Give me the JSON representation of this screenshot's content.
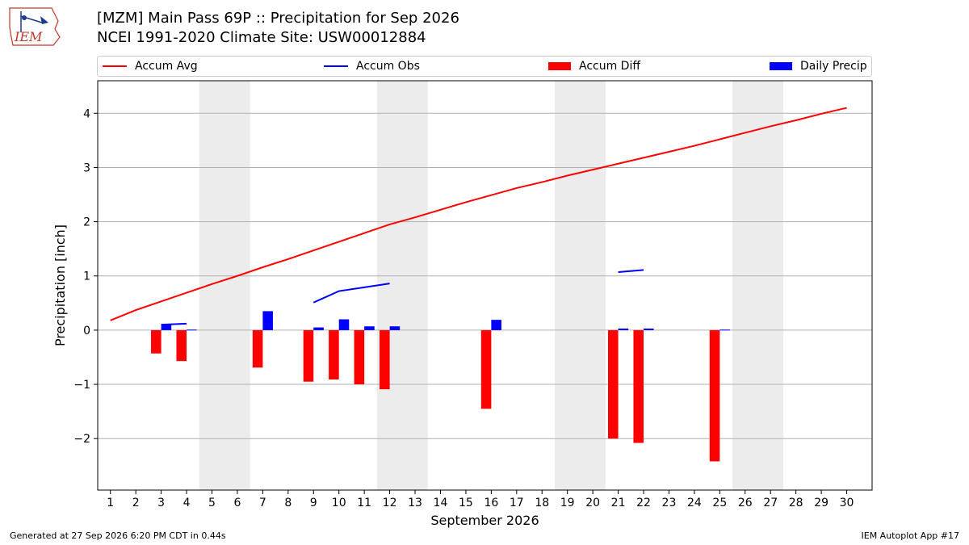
{
  "title_line1": "[MZM] Main Pass 69P :: Precipitation for Sep 2026",
  "title_line2": "NCEI 1991-2020 Climate Site: USW00012884",
  "logo_text": "IEM",
  "legend": [
    {
      "label": "Accum Avg",
      "color": "#ff0000",
      "kind": "line"
    },
    {
      "label": "Accum Obs",
      "color": "#0000ff",
      "kind": "line"
    },
    {
      "label": "Accum Diff",
      "color": "#ff0000",
      "kind": "box"
    },
    {
      "label": "Daily Precip",
      "color": "#0000ff",
      "kind": "box"
    }
  ],
  "footer_left": "Generated at 27 Sep 2026 6:20 PM CDT in 0.44s",
  "footer_right": "IEM Autoplot App #17",
  "chart_data": {
    "type": "bar",
    "xlabel": "September 2026",
    "ylabel": "Precipitation [inch]",
    "xlim": [
      0.5,
      31
    ],
    "ylim": [
      -2.95,
      4.6
    ],
    "x_ticks": [
      1,
      2,
      3,
      4,
      5,
      6,
      7,
      8,
      9,
      10,
      11,
      12,
      13,
      14,
      15,
      16,
      17,
      18,
      19,
      20,
      21,
      22,
      23,
      24,
      25,
      26,
      27,
      28,
      29,
      30
    ],
    "y_ticks": [
      -2,
      -1,
      0,
      1,
      2,
      3,
      4
    ],
    "y_tick_labels": [
      "−2",
      "−1",
      "0",
      "1",
      "2",
      "3",
      "4"
    ],
    "grid": "y",
    "weekend_shading": [
      [
        4.5,
        6.5
      ],
      [
        11.5,
        13.5
      ],
      [
        18.5,
        20.5
      ],
      [
        25.5,
        27.5
      ]
    ],
    "accum_avg": {
      "x": [
        1,
        2,
        3,
        4,
        5,
        6,
        7,
        8,
        9,
        10,
        11,
        12,
        13,
        14,
        15,
        16,
        17,
        18,
        19,
        20,
        21,
        22,
        23,
        24,
        25,
        26,
        27,
        28,
        29,
        30
      ],
      "y": [
        0.18,
        0.37,
        0.53,
        0.69,
        0.85,
        1.0,
        1.16,
        1.31,
        1.47,
        1.63,
        1.79,
        1.95,
        2.08,
        2.22,
        2.36,
        2.49,
        2.62,
        2.73,
        2.85,
        2.96,
        3.07,
        3.18,
        3.29,
        3.4,
        3.52,
        3.64,
        3.76,
        3.87,
        3.99,
        4.1
      ]
    },
    "accum_obs_segments": [
      {
        "x": [
          3,
          4
        ],
        "y": [
          0.1,
          0.12
        ]
      },
      {
        "x": [
          9,
          10,
          11,
          12
        ],
        "y": [
          0.51,
          0.72,
          0.79,
          0.86
        ]
      },
      {
        "x": [
          21,
          22
        ],
        "y": [
          1.07,
          1.11
        ]
      }
    ],
    "accum_diff": [
      {
        "x": 3,
        "value": -0.43
      },
      {
        "x": 4,
        "value": -0.57
      },
      {
        "x": 7,
        "value": -0.69
      },
      {
        "x": 9,
        "value": -0.95
      },
      {
        "x": 10,
        "value": -0.91
      },
      {
        "x": 11,
        "value": -1.0
      },
      {
        "x": 12,
        "value": -1.09
      },
      {
        "x": 16,
        "value": -1.45
      },
      {
        "x": 21,
        "value": -2.0
      },
      {
        "x": 22,
        "value": -2.08
      },
      {
        "x": 25,
        "value": -2.42
      }
    ],
    "daily_precip": [
      {
        "x": 3,
        "value": 0.1
      },
      {
        "x": 4,
        "value": 0.01
      },
      {
        "x": 7,
        "value": 0.35
      },
      {
        "x": 9,
        "value": 0.05
      },
      {
        "x": 10,
        "value": 0.2
      },
      {
        "x": 11,
        "value": 0.07
      },
      {
        "x": 12,
        "value": 0.07
      },
      {
        "x": 16,
        "value": 0.19
      },
      {
        "x": 21,
        "value": 0.03
      },
      {
        "x": 22,
        "value": 0.03
      },
      {
        "x": 25,
        "value": 0.01
      }
    ]
  }
}
